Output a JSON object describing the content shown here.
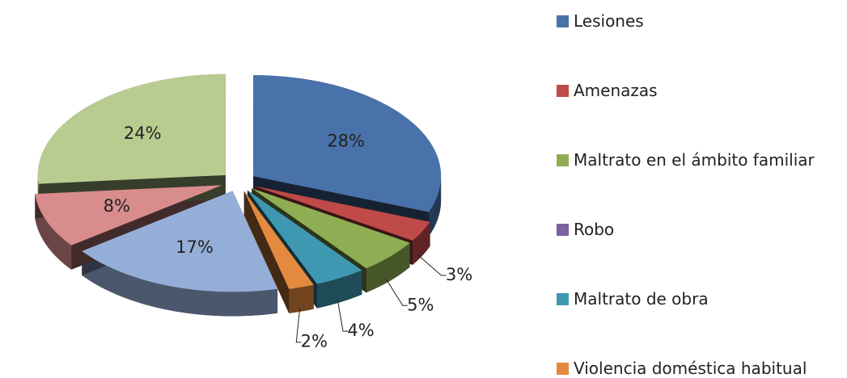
{
  "chart_data": {
    "type": "pie",
    "categories": [
      "Lesiones",
      "Amenazas",
      "Maltrato en el ámbito familiar",
      "Robo",
      "Maltrato de obra",
      "Violencia doméstica habitual",
      null,
      null,
      null
    ],
    "values": [
      28,
      3,
      5,
      null,
      4,
      2,
      17,
      8,
      24
    ],
    "value_labels": [
      "28%",
      "3%",
      "5%",
      null,
      "4%",
      "2%",
      "17%",
      "8%",
      "24%"
    ],
    "colors": [
      "#4a72aa",
      "#bf4a48",
      "#8fae54",
      "#7c62a0",
      "#3f98b2",
      "#e38a3e",
      "#95aed8",
      "#d88c8c",
      "#b8cc90"
    ],
    "legend": "right"
  }
}
